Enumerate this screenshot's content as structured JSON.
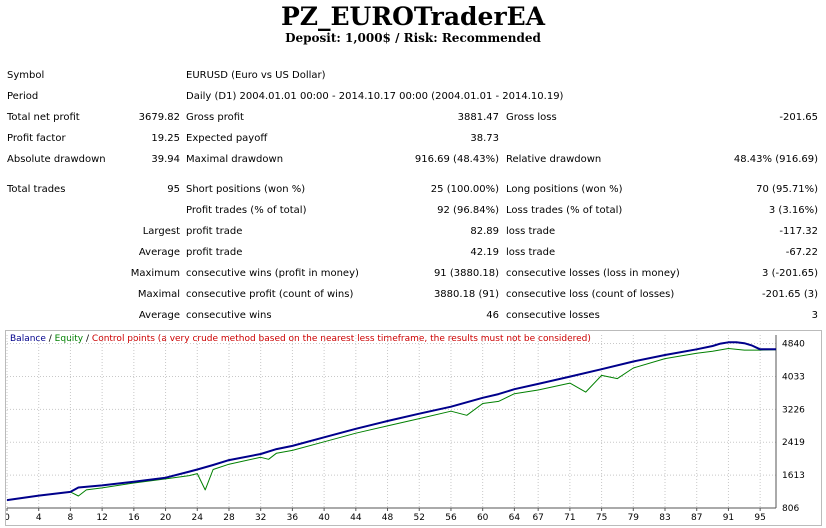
{
  "header": {
    "title": "PZ_EUROTraderEA",
    "subtitle": "Deposit: 1,000$ / Risk: Recommended"
  },
  "report": {
    "symbol_label": "Symbol",
    "symbol_value": "EURUSD (Euro vs US Dollar)",
    "period_label": "Period",
    "period_value": "Daily (D1) 2004.01.01 00:00 - 2014.10.17 00:00 (2004.01.01 - 2014.10.19)",
    "net_profit_label": "Total net profit",
    "net_profit_value": "3679.82",
    "gross_profit_label": "Gross profit",
    "gross_profit_value": "3881.47",
    "gross_loss_label": "Gross loss",
    "gross_loss_value": "-201.65",
    "profit_factor_label": "Profit factor",
    "profit_factor_value": "19.25",
    "expected_payoff_label": "Expected payoff",
    "expected_payoff_value": "38.73",
    "abs_dd_label": "Absolute drawdown",
    "abs_dd_value": "39.94",
    "max_dd_label": "Maximal drawdown",
    "max_dd_value": "916.69 (48.43%)",
    "rel_dd_label": "Relative drawdown",
    "rel_dd_value": "48.43% (916.69)",
    "total_trades_label": "Total trades",
    "total_trades_value": "95",
    "short_label": "Short positions (won %)",
    "short_value": "25 (100.00%)",
    "long_label": "Long positions (won %)",
    "long_value": "70 (95.71%)",
    "profit_trades_label": "Profit trades (% of total)",
    "profit_trades_value": "92 (96.84%)",
    "loss_trades_label": "Loss trades (% of total)",
    "loss_trades_value": "3 (3.16%)",
    "largest_label": "Largest",
    "largest_profit_label": "profit trade",
    "largest_profit_value": "82.89",
    "largest_loss_label": "loss trade",
    "largest_loss_value": "-117.32",
    "average_label": "Average",
    "average_profit_label": "profit trade",
    "average_profit_value": "42.19",
    "average_loss_label": "loss trade",
    "average_loss_value": "-67.22",
    "maximum_label": "Maximum",
    "max_wins_label": "consecutive wins (profit in money)",
    "max_wins_value": "91 (3880.18)",
    "max_losses_label": "consecutive losses (loss in money)",
    "max_losses_value": "3 (-201.65)",
    "maximal_label": "Maximal",
    "maximal_profit_label": "consecutive profit (count of wins)",
    "maximal_profit_value": "3880.18 (91)",
    "maximal_loss_label": "consecutive loss (count of losses)",
    "maximal_loss_value": "-201.65 (3)",
    "avg2_label": "Average",
    "avg_wins_label": "consecutive wins",
    "avg_wins_value": "46",
    "avg_losses_label": "consecutive losses",
    "avg_losses_value": "3"
  },
  "legend": {
    "balance": "Balance",
    "sep1": " / ",
    "equity": "Equity",
    "sep2": " / ",
    "control": "Control points (a very crude method based on the nearest less timeframe, the results must not be considered)"
  },
  "chart_data": {
    "type": "line",
    "colors": {
      "balance": "#00008b",
      "equity": "#008000",
      "grid": "#c8c8c8"
    },
    "y_ticks": [
      806,
      1613,
      2419,
      3226,
      4033,
      4840
    ],
    "ylim": [
      806,
      5050
    ],
    "x_ticks": [
      0,
      4,
      8,
      12,
      16,
      20,
      24,
      28,
      32,
      36,
      40,
      44,
      48,
      52,
      56,
      60,
      64,
      67,
      71,
      75,
      79,
      83,
      87,
      91,
      95
    ],
    "xlim": [
      0,
      97
    ],
    "series": [
      {
        "name": "Balance",
        "x": [
          0,
          4,
          8,
          9,
          12,
          16,
          20,
          23,
          24,
          26,
          28,
          32,
          34,
          36,
          40,
          44,
          48,
          52,
          56,
          60,
          62,
          64,
          67,
          71,
          75,
          79,
          83,
          87,
          89,
          90,
          91,
          92,
          93,
          94,
          95,
          96,
          97
        ],
        "values": [
          1000,
          1110,
          1200,
          1310,
          1360,
          1450,
          1550,
          1700,
          1750,
          1860,
          1980,
          2130,
          2250,
          2330,
          2540,
          2750,
          2940,
          3120,
          3290,
          3510,
          3600,
          3720,
          3850,
          4030,
          4210,
          4400,
          4560,
          4700,
          4780,
          4840,
          4870,
          4870,
          4850,
          4790,
          4700,
          4700,
          4700
        ]
      },
      {
        "name": "Equity",
        "x": [
          0,
          4,
          8,
          9,
          10,
          12,
          16,
          20,
          23,
          24,
          25,
          26,
          28,
          32,
          33,
          34,
          36,
          40,
          44,
          48,
          52,
          56,
          58,
          60,
          62,
          64,
          67,
          71,
          73,
          75,
          77,
          79,
          83,
          87,
          89,
          91,
          93,
          95,
          97
        ],
        "values": [
          1000,
          1110,
          1200,
          1100,
          1250,
          1300,
          1420,
          1520,
          1600,
          1650,
          1250,
          1750,
          1880,
          2050,
          2000,
          2150,
          2220,
          2430,
          2640,
          2820,
          3000,
          3180,
          3080,
          3370,
          3420,
          3610,
          3700,
          3870,
          3650,
          4060,
          3980,
          4240,
          4470,
          4600,
          4650,
          4720,
          4680,
          4680,
          4690
        ]
      }
    ]
  }
}
